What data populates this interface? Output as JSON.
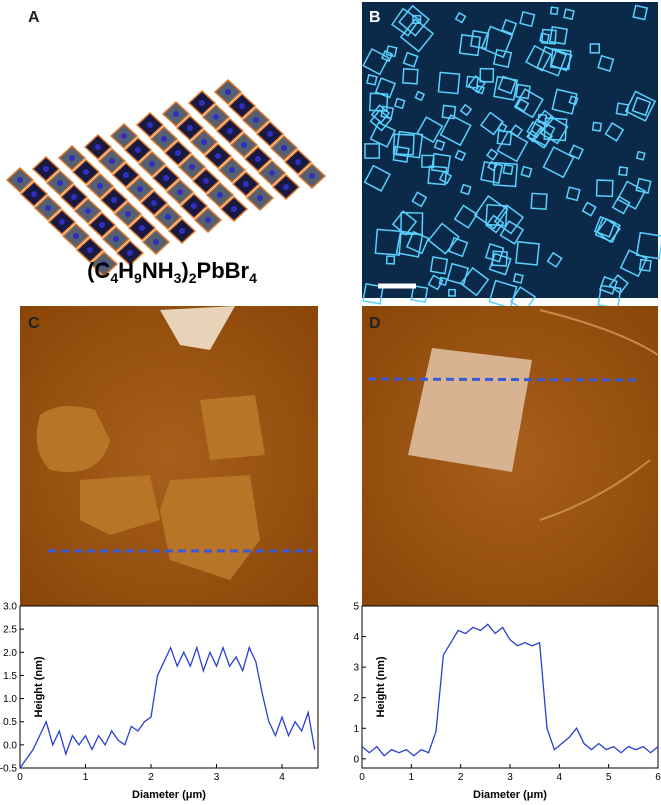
{
  "panel_labels": [
    "A",
    "B",
    "C",
    "D"
  ],
  "formula": "(C4H9NH3)2PbBr4",
  "chart_data": [
    {
      "type": "line",
      "xlabel": "Diameter (μm)",
      "ylabel": "Height (nm)",
      "xlim": [
        0,
        4.55
      ],
      "xticks": [
        0,
        1,
        2,
        3,
        4
      ],
      "ylim": [
        -0.5,
        3.0
      ],
      "yticks": [
        -0.5,
        {
          "value": 0,
          "label": "0.0"
        },
        0.5,
        {
          "value": 1,
          "label": "1.0"
        },
        1.5,
        {
          "value": 2,
          "label": "2.0"
        },
        2.5,
        {
          "value": 3,
          "label": "3.0"
        }
      ],
      "series": [
        {
          "color": "#2b3fd0",
          "x": [
            0,
            0.1,
            0.2,
            0.3,
            0.4,
            0.5,
            0.6,
            0.7,
            0.8,
            0.9,
            1.0,
            1.1,
            1.2,
            1.3,
            1.4,
            1.5,
            1.6,
            1.7,
            1.8,
            1.9,
            2.0,
            2.1,
            2.2,
            2.3,
            2.4,
            2.5,
            2.6,
            2.7,
            2.8,
            2.9,
            3.0,
            3.1,
            3.2,
            3.3,
            3.4,
            3.5,
            3.6,
            3.7,
            3.8,
            3.9,
            4.0,
            4.1,
            4.2,
            4.3,
            4.4,
            4.5
          ],
          "values": [
            -0.5,
            -0.3,
            -0.1,
            0.2,
            0.5,
            0.0,
            0.3,
            -0.2,
            0.2,
            0.0,
            0.2,
            -0.1,
            0.2,
            0.0,
            0.3,
            0.1,
            0.0,
            0.4,
            0.3,
            0.5,
            0.6,
            1.5,
            1.8,
            2.1,
            1.7,
            2.0,
            1.7,
            2.1,
            1.6,
            2.0,
            1.7,
            2.1,
            1.7,
            1.9,
            1.6,
            2.1,
            1.8,
            1.1,
            0.5,
            0.2,
            0.6,
            0.2,
            0.5,
            0.3,
            0.7,
            -0.1
          ]
        }
      ]
    },
    {
      "type": "line",
      "xlabel": "Diameter (μm)",
      "ylabel": "Height (nm)",
      "xlim": [
        0,
        6
      ],
      "xticks": [
        0,
        1,
        2,
        3,
        4,
        5,
        6
      ],
      "ylim": [
        -0.3,
        5
      ],
      "yticks": [
        0,
        1,
        2,
        3,
        4,
        5
      ],
      "series": [
        {
          "color": "#2b3fd0",
          "x": [
            0,
            0.15,
            0.3,
            0.45,
            0.6,
            0.75,
            0.9,
            1.05,
            1.2,
            1.35,
            1.5,
            1.65,
            1.8,
            1.95,
            2.1,
            2.25,
            2.4,
            2.55,
            2.7,
            2.85,
            3.0,
            3.15,
            3.3,
            3.45,
            3.6,
            3.75,
            3.9,
            4.05,
            4.2,
            4.35,
            4.5,
            4.65,
            4.8,
            4.95,
            5.1,
            5.25,
            5.4,
            5.55,
            5.7,
            5.85,
            6.0
          ],
          "values": [
            0.4,
            0.2,
            0.4,
            0.1,
            0.3,
            0.2,
            0.3,
            0.1,
            0.3,
            0.2,
            0.9,
            3.4,
            3.8,
            4.2,
            4.1,
            4.3,
            4.2,
            4.4,
            4.1,
            4.3,
            3.9,
            3.7,
            3.8,
            3.7,
            3.8,
            1.0,
            0.3,
            0.5,
            0.7,
            1.0,
            0.5,
            0.3,
            0.5,
            0.3,
            0.4,
            0.2,
            0.4,
            0.3,
            0.4,
            0.2,
            0.4
          ]
        }
      ]
    }
  ]
}
